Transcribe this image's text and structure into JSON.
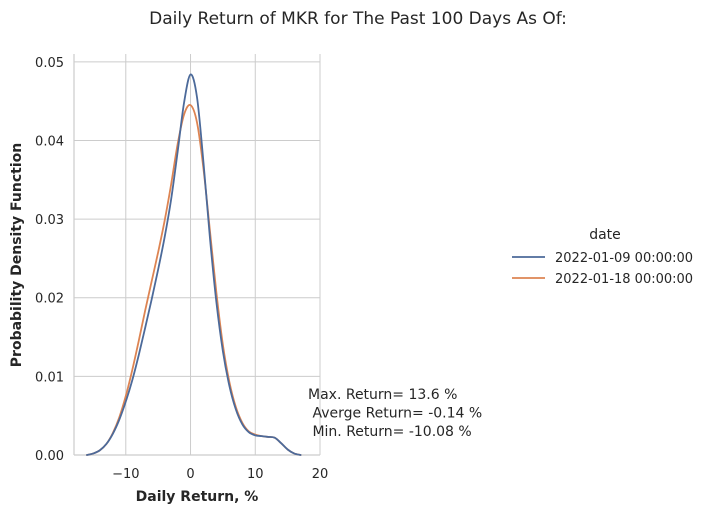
{
  "chart_data": {
    "type": "line",
    "title": "Daily Return of MKR for The Past 100 Days As Of:",
    "xlabel": "Daily Return, %",
    "ylabel": "Probability Density Function",
    "xlim": [
      -18,
      20
    ],
    "ylim": [
      0,
      0.051
    ],
    "x_ticks": [
      -10,
      0,
      10,
      20
    ],
    "x_tick_labels": [
      "−10",
      "0",
      "10",
      "20"
    ],
    "y_ticks": [
      0,
      0.01,
      0.02,
      0.03,
      0.04,
      0.05
    ],
    "y_tick_labels": [
      "0.00",
      "0.01",
      "0.02",
      "0.03",
      "0.04",
      "0.05"
    ],
    "grid": true,
    "legend": {
      "title": "date",
      "placement": "right"
    },
    "series": [
      {
        "name": "2022-01-09 00:00:00",
        "color": "#4c6a9a",
        "x": [
          -16,
          -15,
          -14,
          -13,
          -12,
          -11,
          -10,
          -9,
          -8,
          -7,
          -6,
          -5,
          -4,
          -3,
          -2,
          -1,
          0,
          1,
          2,
          3,
          4,
          5,
          6,
          7,
          8,
          9,
          10,
          11,
          12,
          13,
          14,
          15,
          16,
          17
        ],
        "y": [
          0.0,
          0.0002,
          0.0006,
          0.0014,
          0.0027,
          0.0045,
          0.0068,
          0.0095,
          0.0127,
          0.0162,
          0.0198,
          0.0236,
          0.0277,
          0.0325,
          0.0385,
          0.0448,
          0.0484,
          0.0455,
          0.0372,
          0.0276,
          0.0194,
          0.0132,
          0.0088,
          0.0058,
          0.0039,
          0.0029,
          0.0025,
          0.0024,
          0.0023,
          0.0022,
          0.0015,
          0.0007,
          0.0002,
          0.0
        ]
      },
      {
        "name": "2022-01-18 00:00:00",
        "color": "#dd8452",
        "x": [
          -16,
          -15,
          -14,
          -13,
          -12,
          -11,
          -10,
          -9,
          -8,
          -7,
          -6,
          -5,
          -4,
          -3,
          -2,
          -1,
          0,
          1,
          2,
          3,
          4,
          5,
          6,
          7,
          8,
          9,
          10,
          11,
          12,
          13,
          14,
          15,
          16,
          17
        ],
        "y": [
          0.0,
          0.0002,
          0.0006,
          0.0014,
          0.0028,
          0.0048,
          0.0075,
          0.0108,
          0.0145,
          0.0184,
          0.0221,
          0.0258,
          0.0298,
          0.0344,
          0.0395,
          0.0433,
          0.0445,
          0.0423,
          0.0364,
          0.0285,
          0.0206,
          0.014,
          0.0093,
          0.0061,
          0.0041,
          0.003,
          0.0026,
          0.0024,
          0.0023,
          0.0022,
          0.0015,
          0.0007,
          0.0002,
          0.0
        ]
      }
    ],
    "annotations": [
      "Max. Return= 13.6 %",
      " Averge Return= -0.14 %",
      " Min. Return= -10.08 %"
    ]
  }
}
